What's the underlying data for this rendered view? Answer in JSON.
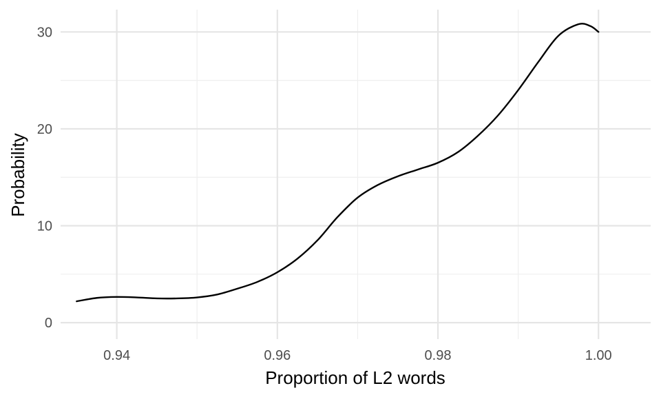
{
  "chart_data": {
    "type": "line",
    "title": "",
    "xlabel": "Proportion of L2 words",
    "ylabel": "Probability",
    "xlim": [
      0.933,
      1.0065
    ],
    "ylim": [
      -1.7,
      32.3
    ],
    "x_ticks": [
      0.94,
      0.96,
      0.98,
      1.0
    ],
    "x_tick_labels": [
      "0.94",
      "0.96",
      "0.98",
      "1.00"
    ],
    "x_minor_ticks": [
      0.95,
      0.97,
      0.99
    ],
    "y_ticks": [
      0,
      10,
      20,
      30
    ],
    "y_tick_labels": [
      "0",
      "10",
      "20",
      "30"
    ],
    "y_minor_ticks": [
      5,
      15,
      25
    ],
    "grid": true,
    "legend": "none",
    "series": [
      {
        "color": "#000000",
        "x": [
          0.935,
          0.9375,
          0.94,
          0.9425,
          0.945,
          0.9475,
          0.95,
          0.9525,
          0.955,
          0.9575,
          0.96,
          0.9625,
          0.965,
          0.9675,
          0.97,
          0.9725,
          0.975,
          0.9775,
          0.98,
          0.9825,
          0.985,
          0.9875,
          0.99,
          0.9925,
          0.995,
          0.9975,
          0.999,
          1.0
        ],
        "y": [
          2.2,
          2.55,
          2.65,
          2.6,
          2.5,
          2.5,
          2.6,
          2.9,
          3.5,
          4.2,
          5.2,
          6.6,
          8.5,
          10.9,
          12.9,
          14.2,
          15.1,
          15.8,
          16.5,
          17.6,
          19.3,
          21.4,
          24.0,
          26.9,
          29.6,
          30.8,
          30.6,
          30.0
        ]
      }
    ]
  }
}
